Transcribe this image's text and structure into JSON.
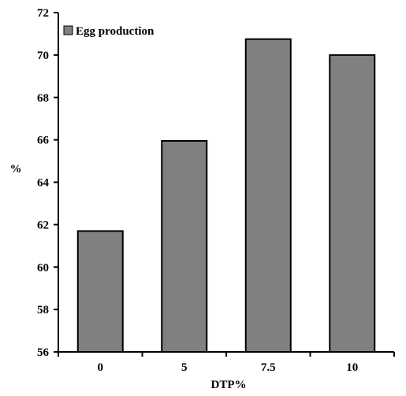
{
  "chart_data": {
    "type": "bar",
    "categories": [
      "0",
      "5",
      "7.5",
      "10"
    ],
    "series": [
      {
        "name": "Egg production",
        "values": [
          61.7,
          65.95,
          70.75,
          70.0
        ],
        "color": "#808080"
      }
    ],
    "xlabel": "DTP%",
    "ylabel": "%",
    "ylim": [
      56,
      72
    ],
    "yticks": [
      56,
      58,
      60,
      62,
      64,
      66,
      68,
      70,
      72
    ],
    "grid": false,
    "legend_position": "top-left",
    "bar_edge_color": "#000000",
    "axis_color": "#000000"
  }
}
